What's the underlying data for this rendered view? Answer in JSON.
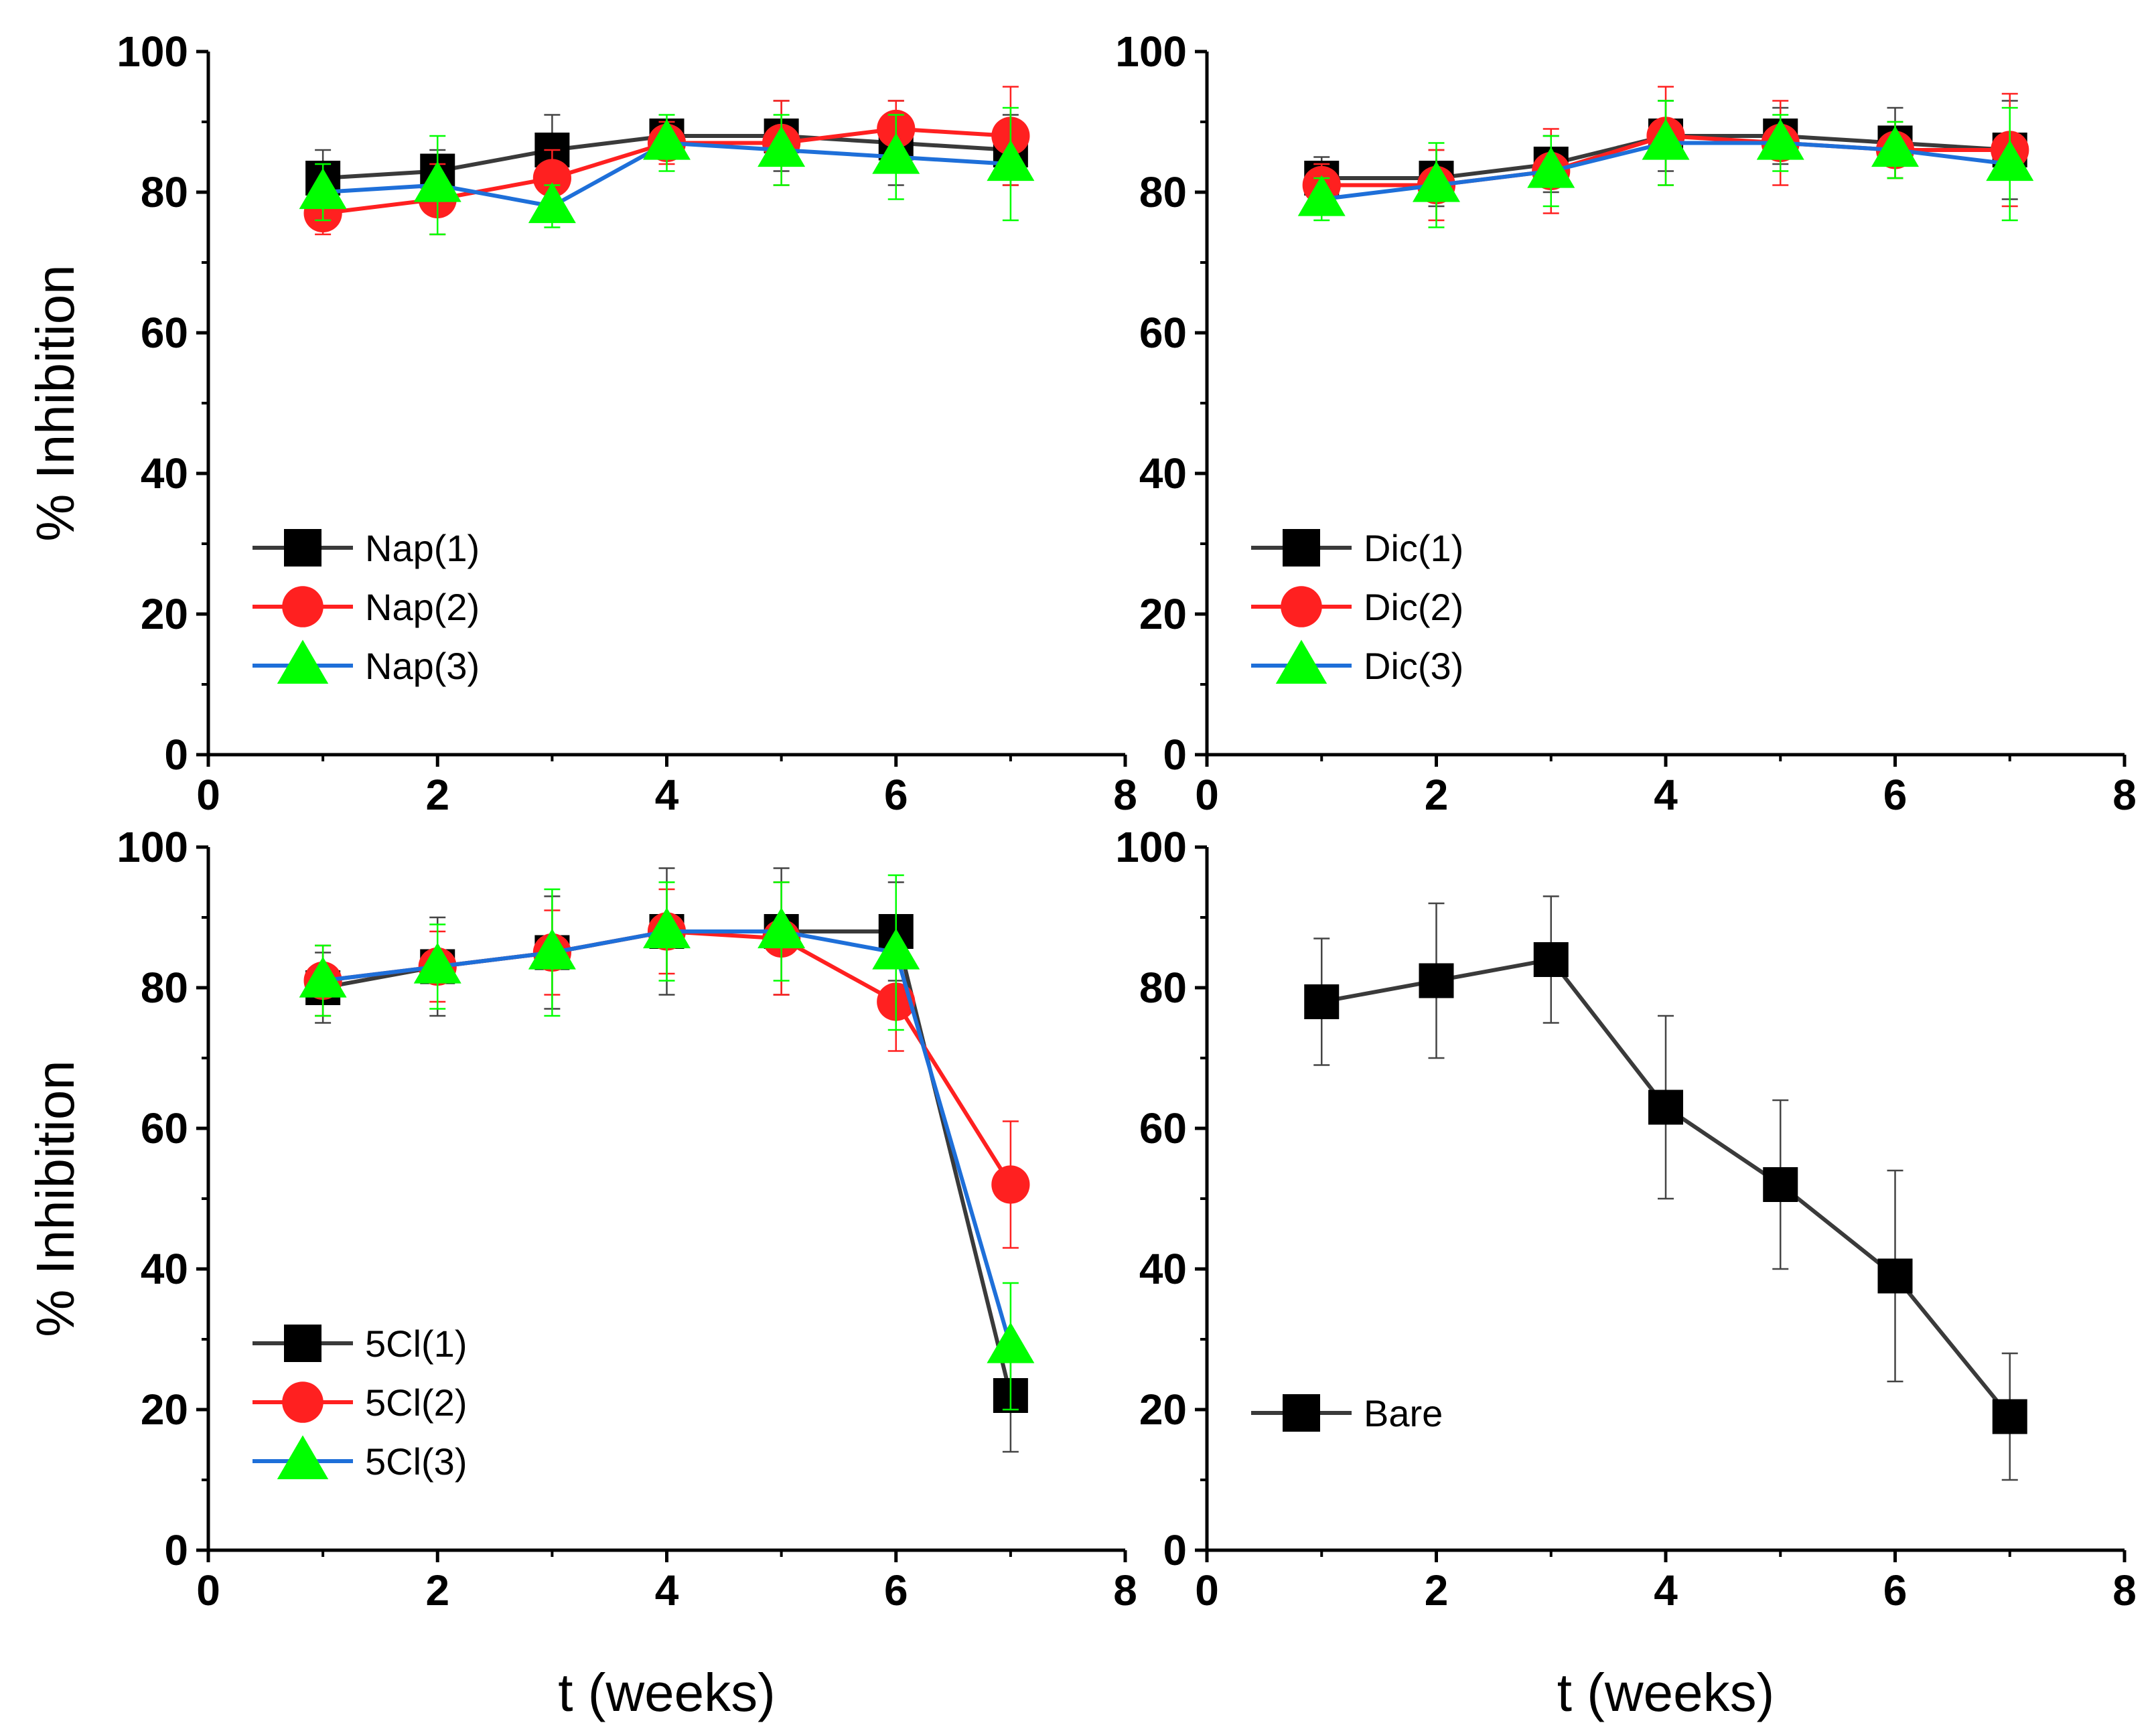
{
  "figure": {
    "shared_xlabel": "t (weeks)",
    "shared_ylabel": "% Inhibition"
  },
  "colors": {
    "series1_line": "#3a3a3a",
    "series1_marker": "#000000",
    "series2": "#ff2020",
    "series3_line": "#1e6fd9",
    "series3_marker": "#00ff00",
    "axis": "#000000"
  },
  "chart_data": [
    {
      "type": "line",
      "panel": "top-left",
      "title": "",
      "xlabel": "",
      "ylabel": "% Inhibition",
      "xlim": [
        0,
        8
      ],
      "ylim": [
        0,
        100
      ],
      "xticks": [
        0,
        2,
        4,
        6,
        8
      ],
      "yticks": [
        0,
        20,
        40,
        60,
        80,
        100
      ],
      "legend_position": "bottom-left",
      "series": [
        {
          "name": "Nap(1)",
          "marker": "square",
          "x": [
            1,
            2,
            3,
            4,
            5,
            6,
            7
          ],
          "y": [
            82,
            83,
            86,
            88,
            88,
            87,
            86
          ],
          "err": [
            4,
            3,
            5,
            2,
            5,
            6,
            5
          ]
        },
        {
          "name": "Nap(2)",
          "marker": "circle",
          "x": [
            1,
            2,
            3,
            4,
            5,
            6,
            7
          ],
          "y": [
            77,
            79,
            82,
            87,
            87,
            89,
            88
          ],
          "err": [
            3,
            5,
            4,
            3,
            6,
            4,
            7
          ]
        },
        {
          "name": "Nap(3)",
          "marker": "triangle",
          "x": [
            1,
            2,
            3,
            4,
            5,
            6,
            7
          ],
          "y": [
            80,
            81,
            78,
            87,
            86,
            85,
            84
          ],
          "err": [
            4,
            7,
            3,
            4,
            5,
            6,
            8
          ]
        }
      ]
    },
    {
      "type": "line",
      "panel": "top-right",
      "title": "",
      "xlabel": "",
      "ylabel": "",
      "xlim": [
        0,
        8
      ],
      "ylim": [
        0,
        100
      ],
      "xticks": [
        0,
        2,
        4,
        6,
        8
      ],
      "yticks": [
        0,
        20,
        40,
        60,
        80,
        100
      ],
      "legend_position": "bottom-left",
      "series": [
        {
          "name": "Dic(1)",
          "marker": "square",
          "x": [
            1,
            2,
            3,
            4,
            5,
            6,
            7
          ],
          "y": [
            82,
            82,
            84,
            88,
            88,
            87,
            86
          ],
          "err": [
            3,
            4,
            4,
            5,
            4,
            5,
            7
          ]
        },
        {
          "name": "Dic(2)",
          "marker": "circle",
          "x": [
            1,
            2,
            3,
            4,
            5,
            6,
            7
          ],
          "y": [
            81,
            81,
            83,
            88,
            87,
            86,
            86
          ],
          "err": [
            3,
            5,
            6,
            7,
            6,
            4,
            8
          ]
        },
        {
          "name": "Dic(3)",
          "marker": "triangle",
          "x": [
            1,
            2,
            3,
            4,
            5,
            6,
            7
          ],
          "y": [
            79,
            81,
            83,
            87,
            87,
            86,
            84
          ],
          "err": [
            3,
            6,
            5,
            6,
            4,
            4,
            8
          ]
        }
      ]
    },
    {
      "type": "line",
      "panel": "bottom-left",
      "title": "",
      "xlabel": "t (weeks)",
      "ylabel": "% Inhibition",
      "xlim": [
        0,
        8
      ],
      "ylim": [
        0,
        100
      ],
      "xticks": [
        0,
        2,
        4,
        6,
        8
      ],
      "yticks": [
        0,
        20,
        40,
        60,
        80,
        100
      ],
      "legend_position": "bottom-left",
      "series": [
        {
          "name": "5Cl(1)",
          "marker": "square",
          "x": [
            1,
            2,
            3,
            4,
            5,
            6,
            7
          ],
          "y": [
            80,
            83,
            85,
            88,
            88,
            88,
            22
          ],
          "err": [
            5,
            7,
            8,
            9,
            9,
            7,
            8
          ]
        },
        {
          "name": "5Cl(2)",
          "marker": "circle",
          "x": [
            1,
            2,
            3,
            4,
            5,
            6,
            7
          ],
          "y": [
            81,
            83,
            85,
            88,
            87,
            78,
            52
          ],
          "err": [
            5,
            5,
            6,
            6,
            8,
            7,
            9
          ]
        },
        {
          "name": "5Cl(3)",
          "marker": "triangle",
          "x": [
            1,
            2,
            3,
            4,
            5,
            6,
            7
          ],
          "y": [
            81,
            83,
            85,
            88,
            88,
            85,
            29
          ],
          "err": [
            5,
            6,
            9,
            7,
            7,
            11,
            9
          ]
        }
      ]
    },
    {
      "type": "line",
      "panel": "bottom-right",
      "title": "",
      "xlabel": "t (weeks)",
      "ylabel": "",
      "xlim": [
        0,
        8
      ],
      "ylim": [
        0,
        100
      ],
      "xticks": [
        0,
        2,
        4,
        6,
        8
      ],
      "yticks": [
        0,
        20,
        40,
        60,
        80,
        100
      ],
      "legend_position": "bottom-left",
      "series": [
        {
          "name": "Bare",
          "marker": "square",
          "x": [
            1,
            2,
            3,
            4,
            5,
            6,
            7
          ],
          "y": [
            78,
            81,
            84,
            63,
            52,
            39,
            19
          ],
          "err": [
            9,
            11,
            9,
            13,
            12,
            15,
            9
          ]
        }
      ]
    }
  ]
}
